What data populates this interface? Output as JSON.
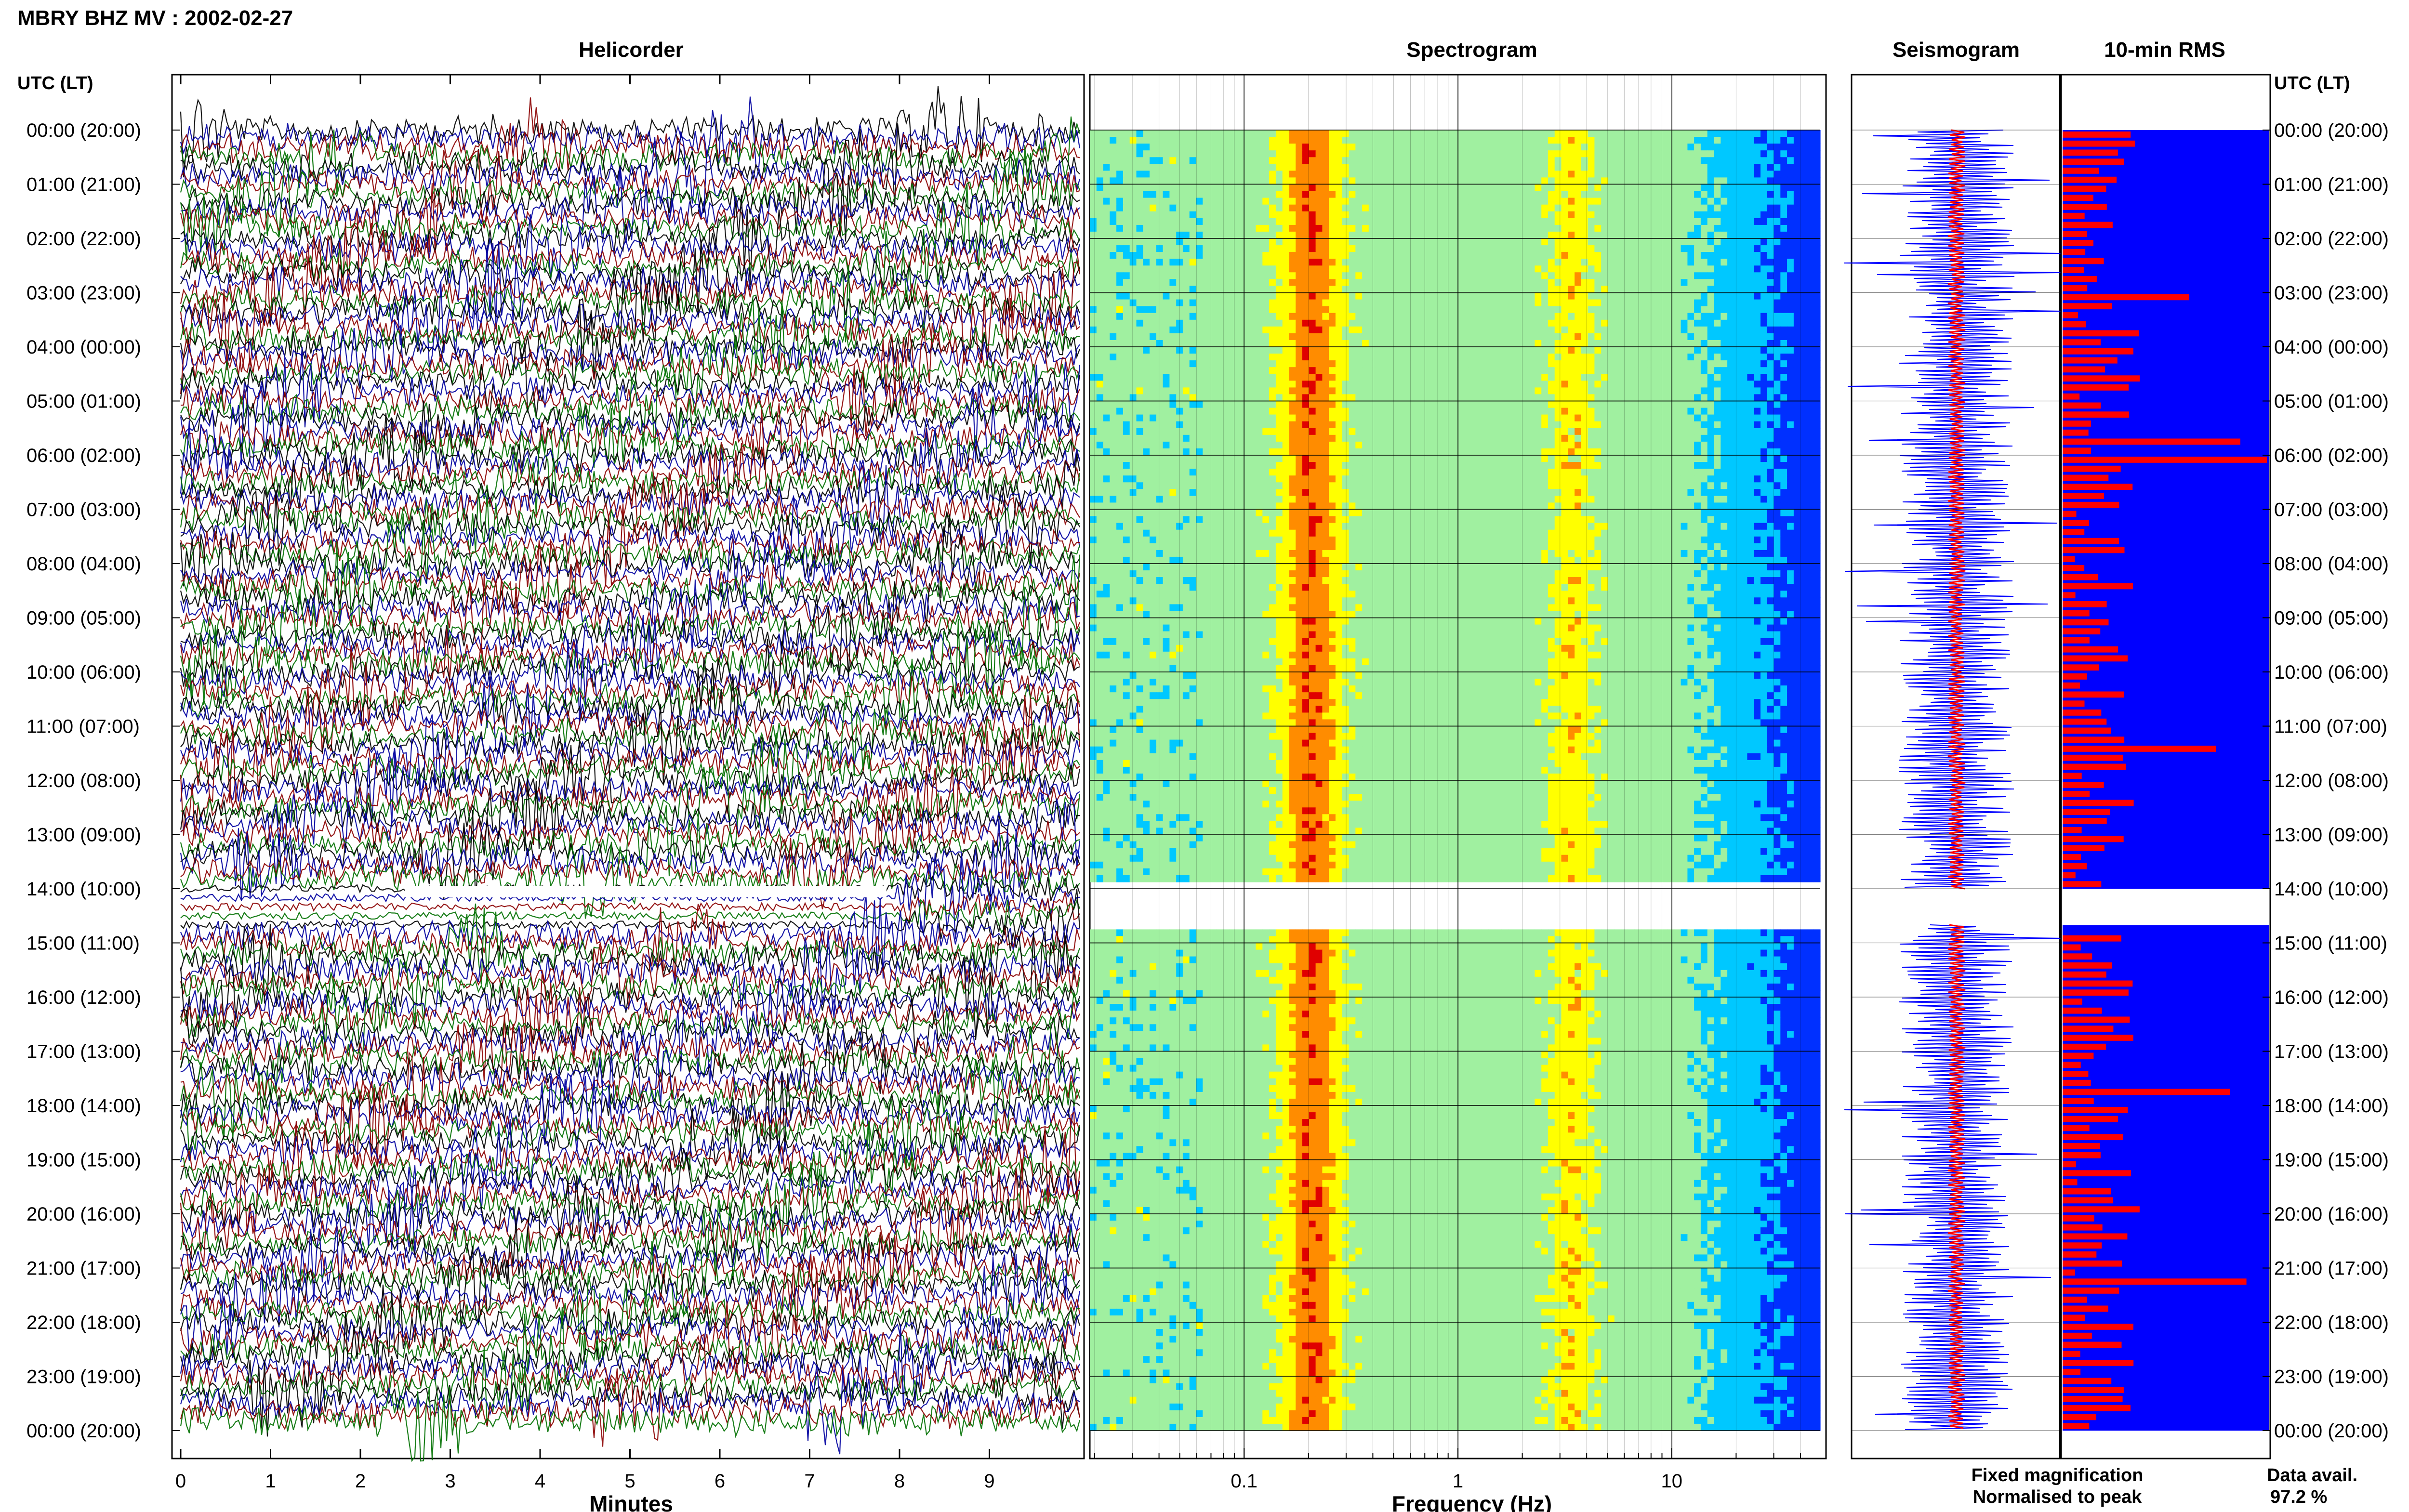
{
  "header": {
    "title": "MBRY BHZ MV : 2002-02-27",
    "utc_label_left": "UTC (LT)",
    "utc_label_right": "UTC (LT)"
  },
  "panels": {
    "helicorder": "Helicorder",
    "spectrogram": "Spectrogram",
    "seismogram": "Seismogram",
    "rms": "10-min RMS"
  },
  "row_labels": [
    "00:00 (20:00)",
    "01:00 (21:00)",
    "02:00 (22:00)",
    "03:00 (23:00)",
    "04:00 (00:00)",
    "05:00 (01:00)",
    "06:00 (02:00)",
    "07:00 (03:00)",
    "08:00 (04:00)",
    "09:00 (05:00)",
    "10:00 (06:00)",
    "11:00 (07:00)",
    "12:00 (08:00)",
    "13:00 (09:00)",
    "14:00 (10:00)",
    "15:00 (11:00)",
    "16:00 (12:00)",
    "17:00 (13:00)",
    "18:00 (14:00)",
    "19:00 (15:00)",
    "20:00 (16:00)",
    "21:00 (17:00)",
    "22:00 (18:00)",
    "23:00 (19:00)",
    "00:00 (20:00)"
  ],
  "helicorder_axis": {
    "label": "Minutes",
    "ticks": [
      "0",
      "1",
      "2",
      "3",
      "4",
      "5",
      "6",
      "7",
      "8",
      "9"
    ],
    "range": [
      0,
      10
    ],
    "trace_colors": [
      "#000000",
      "#0000a0",
      "#8b0000",
      "#007000"
    ]
  },
  "spectrogram_axis": {
    "label": "Frequency (Hz)",
    "scale": "log",
    "range": [
      0.02,
      50
    ],
    "ticks": [
      {
        "value": 0.1,
        "label": "0.1"
      },
      {
        "value": 1,
        "label": "1"
      },
      {
        "value": 10,
        "label": "10"
      }
    ]
  },
  "legend": {
    "fixed": "Fixed magnification",
    "normalised": "Normalised to peak",
    "fixed_color": "#0000ff",
    "normalised_color": "#ff0000"
  },
  "data_availability": {
    "label": "Data avail.",
    "value": "97.2 %"
  },
  "chart_data": [
    {
      "type": "line",
      "name": "helicorder",
      "title": "Helicorder",
      "xlabel": "Minutes",
      "xlim": [
        0,
        10
      ],
      "rows": 25,
      "gap_hours": [
        14.0,
        14.67
      ],
      "grid": false
    },
    {
      "type": "heatmap",
      "name": "spectrogram",
      "title": "Spectrogram",
      "xlabel": "Frequency (Hz)",
      "x_scale": "log",
      "xlim": [
        0.02,
        50
      ],
      "colormap": [
        "#0000a0",
        "#0030ff",
        "#00c8ff",
        "#a0f0a0",
        "#ffff00",
        "#ff8c00",
        "#e00000"
      ],
      "peak_frequency_hz": 0.2,
      "secondary_peak_hz": 3.0,
      "gap_hours": [
        14.0,
        14.67
      ],
      "grid": true
    },
    {
      "type": "bar",
      "name": "10-min RMS",
      "title": "10-min RMS",
      "orientation": "horizontal",
      "value_scale": "relative (0-1)",
      "hours": [
        0,
        24
      ],
      "gap_hours": [
        14.0,
        14.67
      ],
      "notable_values": [
        {
          "time": "05:40",
          "value": 0.87
        },
        {
          "time": "06:00",
          "value": 1.0
        },
        {
          "time": "11:20",
          "value": 0.75
        },
        {
          "time": "17:40",
          "value": 0.82
        },
        {
          "time": "21:10",
          "value": 0.9
        },
        {
          "time": "03:00",
          "value": 0.62
        }
      ]
    }
  ]
}
